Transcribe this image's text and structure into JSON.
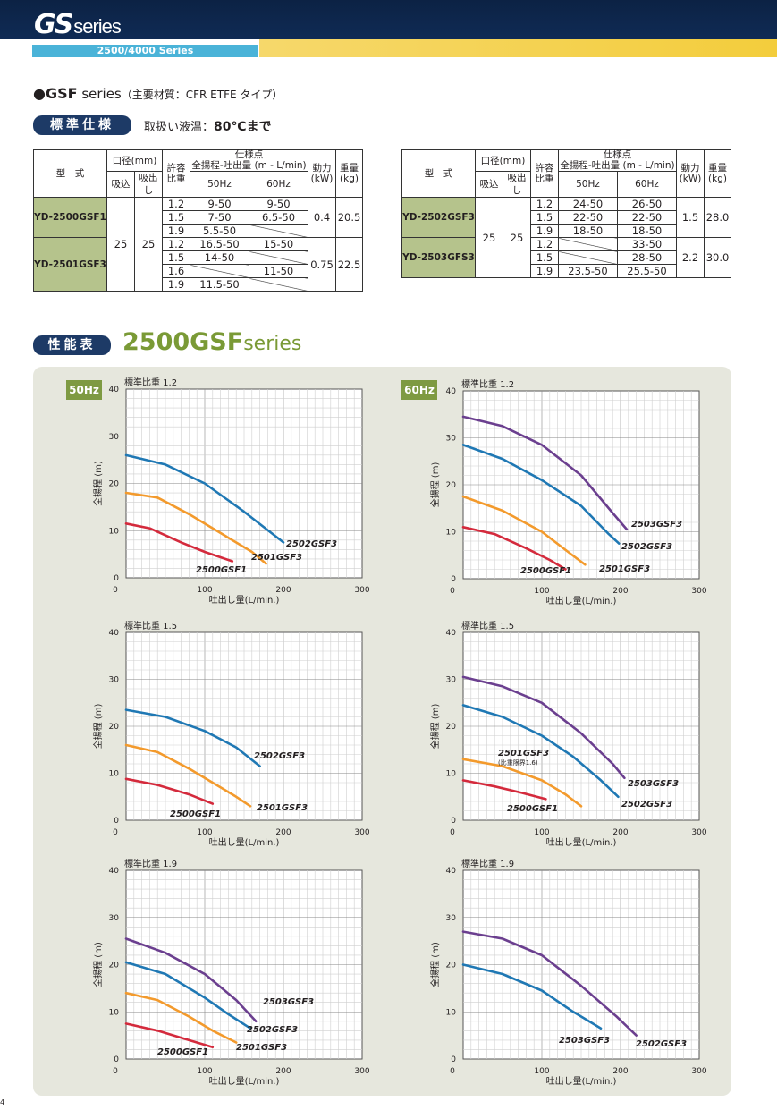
{
  "header": {
    "logo_gs": "GS",
    "logo_series": "series",
    "subbar": "2500/4000 Series"
  },
  "section": {
    "title_main": "●GSF",
    "title_series": " series",
    "title_note": "（主要材質：CFR ETFE タイプ）"
  },
  "spec_label": "標準仕様",
  "liquid_temp_prefix": "取扱い液温：",
  "liquid_temp_value": "80℃まで",
  "perf_label": "性能表",
  "perf_title": "2500GSF",
  "perf_title_series": "series",
  "table_headers": {
    "model": "型　式",
    "bore": "口径(mm)",
    "suction": "吸込",
    "discharge": "吸出し",
    "sg": "許容比重",
    "spec_point": "仕様点",
    "spec_point_sub": "全揚程-吐出量 (m - L/min)",
    "hz50": "50Hz",
    "hz60": "60Hz",
    "power": "動力(kW)",
    "weight": "重量(kg)"
  },
  "table_left": {
    "suction": "25",
    "discharge": "25",
    "groups": [
      {
        "model": "YD-2500GSF1",
        "power": "0.4",
        "weight": "20.5",
        "rows": [
          [
            "1.2",
            "9-50",
            "9-50"
          ],
          [
            "1.5",
            "7-50",
            "6.5-50"
          ],
          [
            "1.9",
            "5.5-50",
            ""
          ]
        ]
      },
      {
        "model": "YD-2501GSF3",
        "power": "0.75",
        "weight": "22.5",
        "rows": [
          [
            "1.2",
            "16.5-50",
            "15-50"
          ],
          [
            "1.5",
            "14-50",
            ""
          ],
          [
            "1.6",
            "",
            "11-50"
          ],
          [
            "1.9",
            "11.5-50",
            ""
          ]
        ]
      }
    ]
  },
  "table_right": {
    "suction": "25",
    "discharge": "25",
    "groups": [
      {
        "model": "YD-2502GSF3",
        "power": "1.5",
        "weight": "28.0",
        "rows": [
          [
            "1.2",
            "24-50",
            "26-50"
          ],
          [
            "1.5",
            "22-50",
            "22-50"
          ],
          [
            "1.9",
            "18-50",
            "18-50"
          ]
        ]
      },
      {
        "model": "YD-2503GFS3",
        "power": "2.2",
        "weight": "30.0",
        "rows": [
          [
            "1.2",
            "",
            "33-50"
          ],
          [
            "1.5",
            "",
            "28-50"
          ],
          [
            "1.9",
            "23.5-50",
            "25.5-50"
          ]
        ]
      }
    ]
  },
  "hz_labels": {
    "left": "50Hz",
    "right": "60Hz"
  },
  "chart_axis": {
    "ylabel": "全揚程 (m)",
    "xlabel": "吐出し量(L/min.)"
  },
  "chart_data": [
    {
      "type": "line",
      "title": "標準比重 1.2",
      "frequency": "50Hz",
      "xlim": [
        0,
        300
      ],
      "ylim": [
        0,
        40
      ],
      "x_ticks": [
        0,
        100,
        200,
        300
      ],
      "y_ticks": [
        0,
        10,
        20,
        30,
        40
      ],
      "series": [
        {
          "name": "2502GSF3",
          "color": "#1f78b4",
          "points": [
            [
              0,
              26
            ],
            [
              50,
              24
            ],
            [
              100,
              20
            ],
            [
              150,
              14
            ],
            [
              200,
              7.5
            ]
          ]
        },
        {
          "name": "2501GSF3",
          "color": "#f39a2c",
          "points": [
            [
              0,
              18
            ],
            [
              40,
              17
            ],
            [
              80,
              13.5
            ],
            [
              120,
              9.5
            ],
            [
              160,
              5.5
            ],
            [
              178,
              3
            ]
          ]
        },
        {
          "name": "2500GSF1",
          "color": "#d42a3c",
          "points": [
            [
              0,
              11.5
            ],
            [
              30,
              10.5
            ],
            [
              70,
              7.5
            ],
            [
              100,
              5.5
            ],
            [
              135,
              3.5
            ]
          ]
        }
      ]
    },
    {
      "type": "line",
      "title": "標準比重 1.2",
      "frequency": "60Hz",
      "xlim": [
        0,
        300
      ],
      "ylim": [
        0,
        40
      ],
      "x_ticks": [
        0,
        100,
        200,
        300
      ],
      "y_ticks": [
        0,
        10,
        20,
        30,
        40
      ],
      "series": [
        {
          "name": "2503GSF3",
          "color": "#6b3f8f",
          "points": [
            [
              0,
              34.5
            ],
            [
              50,
              32.5
            ],
            [
              100,
              28.5
            ],
            [
              150,
              22
            ],
            [
              190,
              14
            ],
            [
              208,
              10.5
            ]
          ]
        },
        {
          "name": "2502GSF3",
          "color": "#1f78b4",
          "points": [
            [
              0,
              28.5
            ],
            [
              50,
              25.5
            ],
            [
              100,
              21
            ],
            [
              150,
              15.5
            ],
            [
              185,
              9.5
            ],
            [
              198,
              7.5
            ]
          ]
        },
        {
          "name": "2501GSF3",
          "color": "#f39a2c",
          "points": [
            [
              0,
              17.5
            ],
            [
              50,
              14.5
            ],
            [
              100,
              10
            ],
            [
              135,
              5.5
            ],
            [
              155,
              3
            ]
          ]
        },
        {
          "name": "2500GSF1",
          "color": "#d42a3c",
          "points": [
            [
              0,
              11
            ],
            [
              40,
              9.5
            ],
            [
              80,
              6.5
            ],
            [
              110,
              4
            ],
            [
              130,
              2
            ]
          ]
        }
      ]
    },
    {
      "type": "line",
      "title": "標準比重 1.5",
      "frequency": "50Hz",
      "xlim": [
        0,
        300
      ],
      "ylim": [
        0,
        40
      ],
      "x_ticks": [
        0,
        100,
        200,
        300
      ],
      "y_ticks": [
        0,
        10,
        20,
        30,
        40
      ],
      "series": [
        {
          "name": "2502GSF3",
          "color": "#1f78b4",
          "points": [
            [
              0,
              23.5
            ],
            [
              50,
              22
            ],
            [
              100,
              19
            ],
            [
              140,
              15.5
            ],
            [
              170,
              11.5
            ]
          ]
        },
        {
          "name": "2501GSF3",
          "color": "#f39a2c",
          "points": [
            [
              0,
              16
            ],
            [
              40,
              14.5
            ],
            [
              80,
              11
            ],
            [
              110,
              8
            ],
            [
              140,
              5
            ],
            [
              158,
              3
            ]
          ]
        },
        {
          "name": "2500GSF1",
          "color": "#d42a3c",
          "points": [
            [
              0,
              8.8
            ],
            [
              40,
              7.5
            ],
            [
              80,
              5.5
            ],
            [
              110,
              3.5
            ]
          ]
        }
      ]
    },
    {
      "type": "line",
      "title": "標準比重 1.5",
      "frequency": "60Hz",
      "xlim": [
        0,
        300
      ],
      "ylim": [
        0,
        40
      ],
      "x_ticks": [
        0,
        100,
        200,
        300
      ],
      "y_ticks": [
        0,
        10,
        20,
        30,
        40
      ],
      "annotation": "(比重限界1.6)",
      "series": [
        {
          "name": "2503GSF3",
          "color": "#6b3f8f",
          "points": [
            [
              0,
              30.5
            ],
            [
              50,
              28.5
            ],
            [
              100,
              25
            ],
            [
              150,
              18.5
            ],
            [
              190,
              12
            ],
            [
              205,
              9
            ]
          ]
        },
        {
          "name": "2502GSF3",
          "color": "#1f78b4",
          "points": [
            [
              0,
              24.5
            ],
            [
              50,
              22
            ],
            [
              100,
              18
            ],
            [
              140,
              13.5
            ],
            [
              175,
              8.5
            ],
            [
              197,
              5
            ]
          ]
        },
        {
          "name": "2501GSF3",
          "color": "#f39a2c",
          "points": [
            [
              0,
              13
            ],
            [
              50,
              11.5
            ],
            [
              100,
              8.5
            ],
            [
              130,
              5.5
            ],
            [
              150,
              3
            ]
          ]
        },
        {
          "name": "2500GSF1",
          "color": "#d42a3c",
          "points": [
            [
              0,
              8.5
            ],
            [
              40,
              7.2
            ],
            [
              75,
              5.8
            ],
            [
              105,
              4.5
            ]
          ]
        }
      ]
    },
    {
      "type": "line",
      "title": "標準比重 1.9",
      "frequency": "50Hz",
      "xlim": [
        0,
        300
      ],
      "ylim": [
        0,
        40
      ],
      "x_ticks": [
        0,
        100,
        200,
        300
      ],
      "y_ticks": [
        0,
        10,
        20,
        30,
        40
      ],
      "series": [
        {
          "name": "2503GSF3",
          "color": "#6b3f8f",
          "points": [
            [
              0,
              25.5
            ],
            [
              50,
              22.5
            ],
            [
              100,
              18
            ],
            [
              140,
              12.5
            ],
            [
              165,
              8
            ]
          ]
        },
        {
          "name": "2502GSF3",
          "color": "#1f78b4",
          "points": [
            [
              0,
              20.5
            ],
            [
              50,
              18
            ],
            [
              100,
              13
            ],
            [
              130,
              9.5
            ],
            [
              158,
              6.5
            ]
          ]
        },
        {
          "name": "2501GSF3",
          "color": "#f39a2c",
          "points": [
            [
              0,
              14
            ],
            [
              40,
              12.5
            ],
            [
              80,
              9
            ],
            [
              110,
              6
            ],
            [
              140,
              3.5
            ]
          ]
        },
        {
          "name": "2500GSF1",
          "color": "#d42a3c",
          "points": [
            [
              0,
              7.5
            ],
            [
              40,
              6
            ],
            [
              80,
              4
            ],
            [
              110,
              2.5
            ]
          ]
        }
      ]
    },
    {
      "type": "line",
      "title": "標準比重 1.9",
      "frequency": "60Hz",
      "xlim": [
        0,
        300
      ],
      "ylim": [
        0,
        40
      ],
      "x_ticks": [
        0,
        100,
        200,
        300
      ],
      "y_ticks": [
        0,
        10,
        20,
        30,
        40
      ],
      "series": [
        {
          "name": "2503GSF3",
          "color": "#6b3f8f",
          "points": [
            [
              0,
              27
            ],
            [
              50,
              25.5
            ],
            [
              100,
              22
            ],
            [
              150,
              15.5
            ],
            [
              195,
              9
            ],
            [
              220,
              5
            ]
          ]
        },
        {
          "name": "2502GSF3",
          "color": "#1f78b4",
          "points": [
            [
              0,
              20
            ],
            [
              50,
              18
            ],
            [
              100,
              14.5
            ],
            [
              140,
              10
            ],
            [
              175,
              6.5
            ]
          ]
        }
      ]
    }
  ],
  "page_number": "4"
}
